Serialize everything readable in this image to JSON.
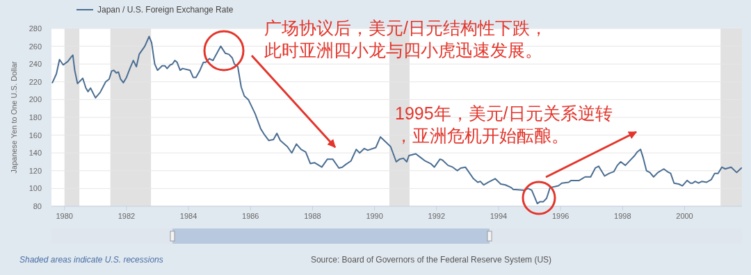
{
  "chart_data": {
    "type": "line",
    "ylabel": "Japanese Yen to One U.S. Dollar",
    "x": [
      1979.61,
      1979.74,
      1979.84,
      1979.96,
      1980.11,
      1980.22,
      1980.27,
      1980.33,
      1980.42,
      1980.59,
      1980.69,
      1980.76,
      1980.84,
      1981.0,
      1981.15,
      1981.33,
      1981.44,
      1981.52,
      1981.59,
      1981.67,
      1981.74,
      1981.81,
      1981.9,
      1982.0,
      1982.11,
      1982.22,
      1982.32,
      1982.41,
      1982.59,
      1982.73,
      1982.81,
      1982.91,
      1983.0,
      1983.15,
      1983.24,
      1983.31,
      1983.41,
      1983.48,
      1983.56,
      1983.63,
      1983.73,
      1983.81,
      1984.05,
      1984.15,
      1984.24,
      1984.37,
      1984.48,
      1984.56,
      1984.67,
      1984.79,
      1985.04,
      1985.19,
      1985.3,
      1985.41,
      1985.48,
      1985.59,
      1985.7,
      1985.8,
      1985.93,
      1986.15,
      1986.33,
      1986.44,
      1986.59,
      1986.74,
      1986.85,
      1986.96,
      1987.19,
      1987.33,
      1987.48,
      1987.63,
      1987.78,
      1987.93,
      1988.07,
      1988.3,
      1988.48,
      1988.65,
      1988.85,
      1988.96,
      1989.07,
      1989.24,
      1989.41,
      1989.52,
      1989.67,
      1989.78,
      1990.04,
      1990.19,
      1990.37,
      1990.52,
      1990.7,
      1990.81,
      1990.93,
      1991.04,
      1991.11,
      1991.33,
      1991.48,
      1991.63,
      1991.81,
      1991.93,
      1992.11,
      1992.19,
      1992.37,
      1992.52,
      1992.67,
      1992.78,
      1992.93,
      1993.19,
      1993.33,
      1993.41,
      1993.52,
      1993.67,
      1993.89,
      1994.07,
      1994.22,
      1994.41,
      1994.47,
      1994.84,
      1994.95,
      1995.07,
      1995.25,
      1995.33,
      1995.44,
      1995.55,
      1995.66,
      1995.81,
      1995.93,
      1996.04,
      1996.26,
      1996.34,
      1996.49,
      1996.6,
      1996.79,
      1996.97,
      1997.12,
      1997.23,
      1997.42,
      1997.57,
      1997.72,
      1997.83,
      1997.94,
      1998.09,
      1998.28,
      1998.39,
      1998.47,
      1998.58,
      1998.66,
      1998.77,
      1998.88,
      1999.0,
      1999.14,
      1999.33,
      1999.44,
      1999.55,
      1999.66,
      1999.81,
      1999.93,
      2000.08,
      2000.19,
      2000.26,
      2000.34,
      2000.45,
      2000.56,
      2000.71,
      2000.86,
      2000.97,
      2001.08,
      2001.2,
      2001.31,
      2001.5,
      2001.68,
      2001.83
    ],
    "series": [
      {
        "name": "Japan / U.S. Foreign Exchange Rate",
        "color": "#4a6d92",
        "values": [
          219,
          229,
          245,
          239,
          243,
          248,
          250,
          233,
          218,
          224,
          213,
          209,
          213,
          202,
          208,
          220,
          223,
          232,
          233,
          230,
          231,
          223,
          219,
          225,
          235,
          244,
          237,
          251,
          260,
          271,
          264,
          240,
          233,
          238,
          238,
          235,
          239,
          240,
          244,
          242,
          233,
          235,
          233,
          225,
          225,
          233,
          242,
          242,
          246,
          244,
          260,
          252,
          251,
          247,
          240,
          237,
          214,
          204,
          200,
          184,
          167,
          161,
          154,
          155,
          162,
          154,
          147,
          140,
          150,
          144,
          141,
          128,
          129,
          124,
          133,
          133,
          123,
          124,
          127,
          131,
          144,
          140,
          145,
          143,
          146,
          158,
          152,
          147,
          130,
          133,
          134,
          130,
          137,
          139,
          135,
          131,
          128,
          124,
          133,
          132,
          126,
          124,
          120,
          123,
          124,
          111,
          107,
          108,
          104,
          107,
          111,
          105,
          104,
          101,
          99,
          98,
          100,
          98,
          83,
          85,
          85,
          89,
          101,
          102,
          103,
          106,
          107,
          109,
          109,
          109,
          113,
          113,
          123,
          125,
          114,
          117,
          119,
          126,
          130,
          126,
          133,
          137,
          141,
          144,
          135,
          120,
          118,
          113,
          118,
          122,
          119,
          117,
          106,
          105,
          103,
          109,
          106,
          106,
          108,
          106,
          108,
          107,
          110,
          117,
          117,
          124,
          122,
          124,
          118,
          123
        ]
      }
    ],
    "xlim": [
      1979.58,
      2001.85
    ],
    "xticks": [
      1980,
      1982,
      1984,
      1986,
      1988,
      1990,
      1992,
      1994,
      1996,
      1998,
      2000
    ],
    "ylim": [
      80,
      280
    ],
    "yticks": [
      80,
      100,
      120,
      140,
      160,
      180,
      200,
      220,
      240,
      260,
      280
    ],
    "grid": "y",
    "legend": "top left",
    "marker": "none",
    "line_style": "solid",
    "bands": [
      {
        "axis": "x",
        "from": 1980.0,
        "to": 1980.48,
        "color": "#e1e1e1"
      },
      {
        "axis": "x",
        "from": 1981.48,
        "to": 1982.79,
        "color": "#e1e1e1"
      },
      {
        "axis": "x",
        "from": 1990.48,
        "to": 1991.13,
        "color": "#e1e1e1"
      },
      {
        "axis": "x",
        "from": 2001.16,
        "to": 2001.85,
        "color": "#e1e1e1"
      }
    ],
    "annotations": [
      "广场协议后，美元/日元结构性下跌，此时亚洲四小龙与四小虎迅速发展。",
      "1995年，美元/日元关系逆转，亚洲危机开始酝酿。",
      "Shaded areas indicate U.S. recessions",
      "Source: Board of Governors of the Federal Reserve System (US)"
    ]
  }
}
